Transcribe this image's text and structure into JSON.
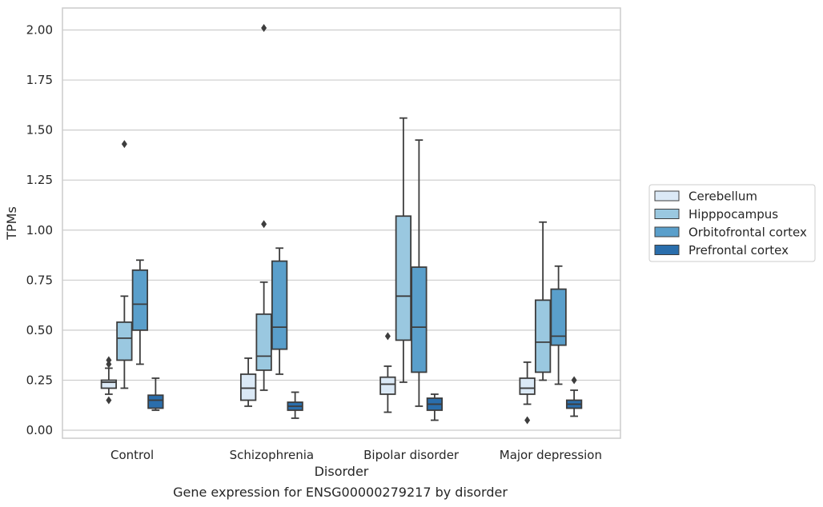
{
  "caption": "Gene expression for ENSG00000279217 by disorder",
  "colors": {
    "Cerebellum": "#dbe9f6",
    "Hipppocampus": "#9ac8e0",
    "Orbitofrontal cortex": "#5a9fcb",
    "Prefrontal cortex": "#2a6eac",
    "line": "#3d3d3d",
    "grid": "#cccccc",
    "frame": "#cccccc"
  },
  "chart_data": {
    "type": "box",
    "title": "",
    "xlabel": "Disorder",
    "ylabel": "TPMs",
    "ylim": [
      -0.04,
      2.11
    ],
    "yticks": [
      0.0,
      0.25,
      0.5,
      0.75,
      1.0,
      1.25,
      1.5,
      1.75,
      2.0
    ],
    "ytick_labels": [
      "0.00",
      "0.25",
      "0.50",
      "0.75",
      "1.00",
      "1.25",
      "1.50",
      "1.75",
      "2.00"
    ],
    "grid": true,
    "legend_position": "right",
    "categories": [
      "Control",
      "Schizophrenia",
      "Bipolar disorder",
      "Major depression"
    ],
    "series": [
      {
        "name": "Cerebellum",
        "boxes": [
          {
            "whislo": 0.18,
            "q1": 0.21,
            "med": 0.24,
            "q3": 0.25,
            "whishi": 0.31,
            "fliers": [
              0.15,
              0.33,
              0.35
            ]
          },
          {
            "whislo": 0.12,
            "q1": 0.15,
            "med": 0.21,
            "q3": 0.28,
            "whishi": 0.36,
            "fliers": []
          },
          {
            "whislo": 0.09,
            "q1": 0.18,
            "med": 0.23,
            "q3": 0.265,
            "whishi": 0.32,
            "fliers": [
              0.47
            ]
          },
          {
            "whislo": 0.13,
            "q1": 0.18,
            "med": 0.21,
            "q3": 0.26,
            "whishi": 0.34,
            "fliers": [
              0.05
            ]
          }
        ]
      },
      {
        "name": "Hipppocampus",
        "boxes": [
          {
            "whislo": 0.21,
            "q1": 0.35,
            "med": 0.46,
            "q3": 0.54,
            "whishi": 0.67,
            "fliers": [
              1.43
            ]
          },
          {
            "whislo": 0.2,
            "q1": 0.3,
            "med": 0.37,
            "q3": 0.58,
            "whishi": 0.74,
            "fliers": [
              1.03,
              2.01
            ]
          },
          {
            "whislo": 0.24,
            "q1": 0.45,
            "med": 0.67,
            "q3": 1.07,
            "whishi": 1.56,
            "fliers": []
          },
          {
            "whislo": 0.25,
            "q1": 0.29,
            "med": 0.44,
            "q3": 0.65,
            "whishi": 1.04,
            "fliers": []
          }
        ]
      },
      {
        "name": "Orbitofrontal cortex",
        "boxes": [
          {
            "whislo": 0.33,
            "q1": 0.5,
            "med": 0.63,
            "q3": 0.8,
            "whishi": 0.85,
            "fliers": []
          },
          {
            "whislo": 0.28,
            "q1": 0.405,
            "med": 0.515,
            "q3": 0.845,
            "whishi": 0.91,
            "fliers": []
          },
          {
            "whislo": 0.12,
            "q1": 0.29,
            "med": 0.515,
            "q3": 0.815,
            "whishi": 1.45,
            "fliers": []
          },
          {
            "whislo": 0.23,
            "q1": 0.425,
            "med": 0.47,
            "q3": 0.705,
            "whishi": 0.82,
            "fliers": []
          }
        ]
      },
      {
        "name": "Prefrontal cortex",
        "boxes": [
          {
            "whislo": 0.1,
            "q1": 0.11,
            "med": 0.15,
            "q3": 0.175,
            "whishi": 0.26,
            "fliers": []
          },
          {
            "whislo": 0.06,
            "q1": 0.1,
            "med": 0.12,
            "q3": 0.14,
            "whishi": 0.19,
            "fliers": []
          },
          {
            "whislo": 0.05,
            "q1": 0.1,
            "med": 0.13,
            "q3": 0.16,
            "whishi": 0.18,
            "fliers": []
          },
          {
            "whislo": 0.07,
            "q1": 0.11,
            "med": 0.13,
            "q3": 0.15,
            "whishi": 0.2,
            "fliers": [
              0.25
            ]
          }
        ]
      }
    ]
  }
}
